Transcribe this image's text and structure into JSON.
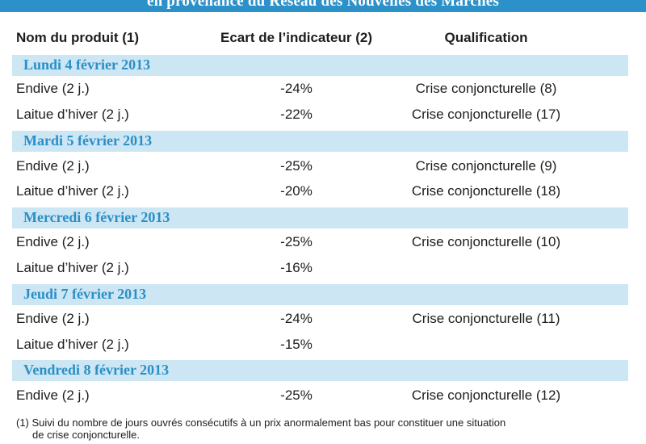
{
  "title": "en provenance du Réseau des Nouvelles des Marchés",
  "headers": {
    "product": "Nom du produit (1)",
    "ecart": "Ecart de l’indicateur (2)",
    "qualification": "Qualification"
  },
  "days": [
    {
      "label": "Lundi 4 février 2013",
      "rows": [
        {
          "product": "Endive (2 j.)",
          "ecart": "-24%",
          "qualification": "Crise conjoncturelle (8)"
        },
        {
          "product": "Laitue d’hiver (2 j.)",
          "ecart": "-22%",
          "qualification": "Crise conjoncturelle (17)"
        }
      ]
    },
    {
      "label": "Mardi 5 février 2013",
      "rows": [
        {
          "product": "Endive (2 j.)",
          "ecart": "-25%",
          "qualification": "Crise conjoncturelle (9)"
        },
        {
          "product": "Laitue d’hiver (2 j.)",
          "ecart": "-20%",
          "qualification": "Crise conjoncturelle (18)"
        }
      ]
    },
    {
      "label": "Mercredi 6 février 2013",
      "rows": [
        {
          "product": "Endive (2 j.)",
          "ecart": "-25%",
          "qualification": "Crise conjoncturelle (10)"
        },
        {
          "product": "Laitue d’hiver (2 j.)",
          "ecart": "-16%",
          "qualification": ""
        }
      ]
    },
    {
      "label": "Jeudi 7 février 2013",
      "rows": [
        {
          "product": "Endive (2 j.)",
          "ecart": "-24%",
          "qualification": "Crise conjoncturelle (11)"
        },
        {
          "product": "Laitue d’hiver (2 j.)",
          "ecart": "-15%",
          "qualification": ""
        }
      ]
    },
    {
      "label": "Vendredi 8 février 2013",
      "rows": [
        {
          "product": "Endive (2 j.)",
          "ecart": "-25%",
          "qualification": "Crise conjoncturelle (12)"
        }
      ]
    }
  ],
  "footnote": {
    "line1": "(1) Suivi du nombre de jours ouvrés consécutifs à un prix anormalement bas pour constituer une situation",
    "line2": "de crise conjoncturelle."
  }
}
